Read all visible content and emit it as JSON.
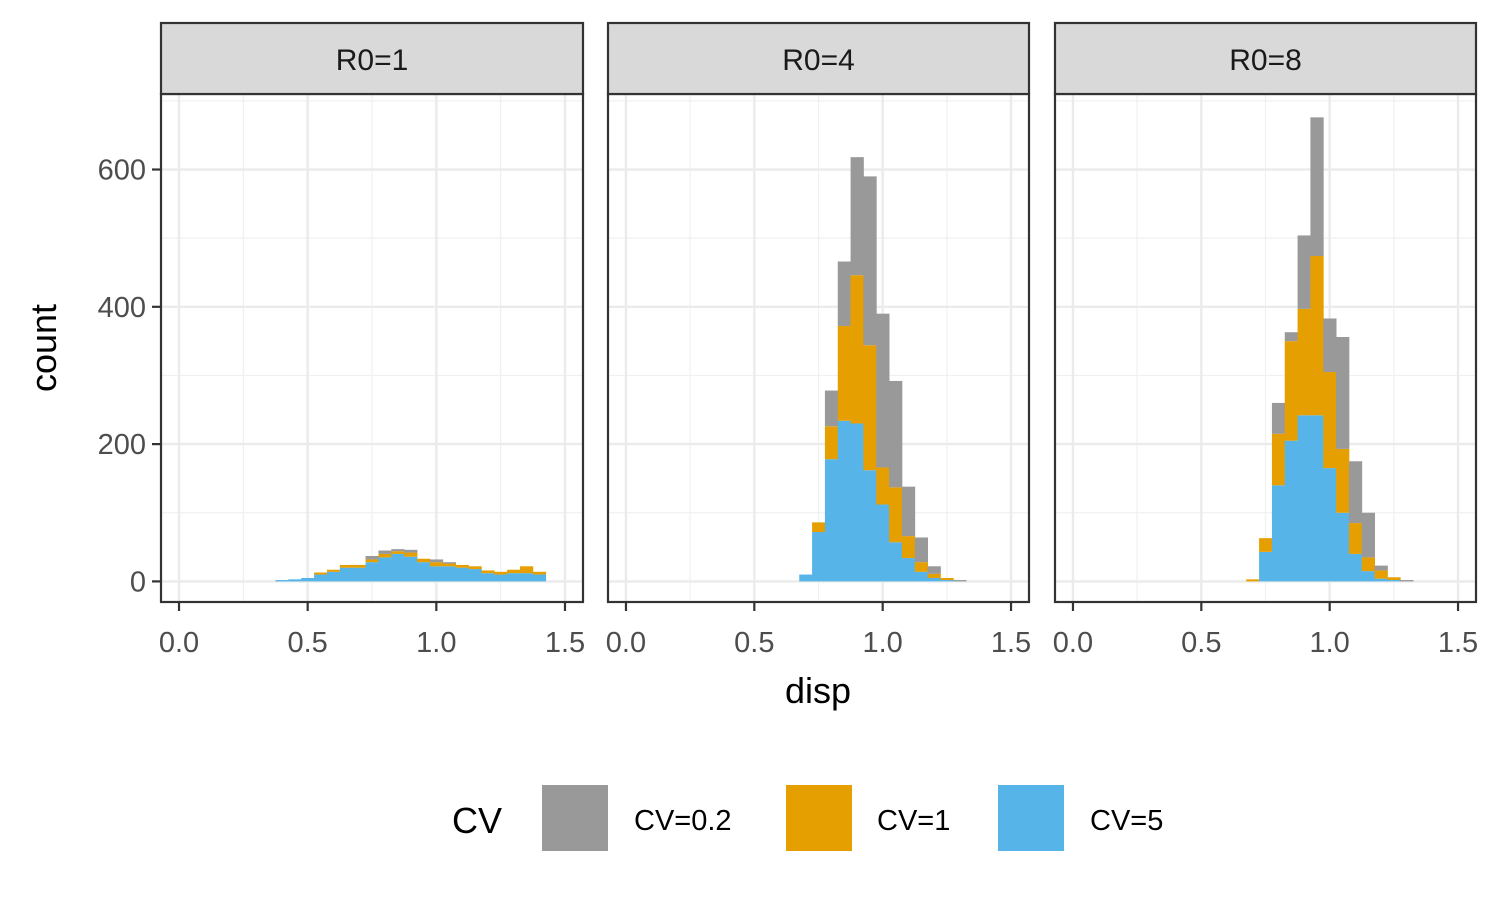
{
  "chart_data": {
    "type": "bar",
    "subtype": "stacked-histogram-faceted",
    "xlabel": "disp",
    "ylabel": "count",
    "xlim": [
      -0.07,
      1.57
    ],
    "ylim": [
      -30,
      710
    ],
    "x_ticks": [
      0.0,
      0.5,
      1.0,
      1.5
    ],
    "x_tick_labels": [
      "0.0",
      "0.5",
      "1.0",
      "1.5"
    ],
    "y_ticks": [
      0,
      200,
      400,
      600
    ],
    "y_tick_labels": [
      "0",
      "200",
      "400",
      "600"
    ],
    "grid": true,
    "bin_width": 0.05,
    "bins": [
      0.4,
      0.45,
      0.5,
      0.55,
      0.6,
      0.65,
      0.7,
      0.75,
      0.8,
      0.85,
      0.9,
      0.95,
      1.0,
      1.05,
      1.1,
      1.15,
      1.2,
      1.25,
      1.3,
      1.35,
      1.4
    ],
    "legend": {
      "title": "CV",
      "position": "bottom",
      "entries": [
        {
          "label": "CV=0.2",
          "color": "#999999"
        },
        {
          "label": "CV=1",
          "color": "#E69F00"
        },
        {
          "label": "CV=5",
          "color": "#56B4E9"
        }
      ]
    },
    "panels": [
      {
        "title": "R0=1",
        "series": [
          {
            "name": "CV=5",
            "values": [
              2,
              3,
              5,
              10,
              14,
              20,
              20,
              28,
              35,
              40,
              36,
              28,
              22,
              22,
              20,
              18,
              12,
              10,
              12,
              12,
              10
            ]
          },
          {
            "name": "CV=1",
            "values": [
              0,
              0,
              0,
              3,
              3,
              4,
              4,
              4,
              5,
              4,
              6,
              5,
              6,
              4,
              4,
              4,
              4,
              4,
              5,
              10,
              4
            ]
          },
          {
            "name": "CV=0.2",
            "values": [
              0,
              0,
              0,
              0,
              0,
              0,
              0,
              5,
              5,
              3,
              4,
              0,
              4,
              2,
              0,
              0,
              0,
              0,
              0,
              0,
              0
            ]
          }
        ]
      },
      {
        "title": "R0=4",
        "series": [
          {
            "name": "CV=5",
            "values": [
              0,
              0,
              0,
              0,
              0,
              0,
              10,
              72,
              178,
              234,
              230,
              162,
              112,
              57,
              34,
              14,
              5,
              2,
              0,
              0,
              0
            ]
          },
          {
            "name": "CV=1",
            "values": [
              0,
              0,
              0,
              0,
              0,
              0,
              0,
              14,
              48,
              138,
              216,
              182,
              54,
              80,
              32,
              14,
              6,
              3,
              0,
              0,
              0
            ]
          },
          {
            "name": "CV=0.2",
            "values": [
              0,
              0,
              0,
              0,
              0,
              0,
              0,
              0,
              52,
              94,
              172,
              246,
              224,
              155,
              72,
              36,
              11,
              0,
              2,
              0,
              0
            ]
          }
        ]
      },
      {
        "title": "R0=8",
        "series": [
          {
            "name": "CV=5",
            "values": [
              0,
              0,
              0,
              0,
              0,
              0,
              0,
              43,
              140,
              205,
              242,
              242,
              165,
              100,
              40,
              15,
              4,
              2,
              0,
              0,
              0
            ]
          },
          {
            "name": "CV=1",
            "values": [
              0,
              0,
              0,
              0,
              0,
              0,
              3,
              20,
              75,
              145,
              155,
              232,
              140,
              93,
              45,
              20,
              12,
              4,
              0,
              0,
              0
            ]
          },
          {
            "name": "CV=0.2",
            "values": [
              0,
              0,
              0,
              0,
              0,
              0,
              0,
              0,
              45,
              13,
              107,
              202,
              78,
              163,
              90,
              65,
              7,
              0,
              2,
              0,
              0
            ]
          }
        ]
      }
    ]
  }
}
